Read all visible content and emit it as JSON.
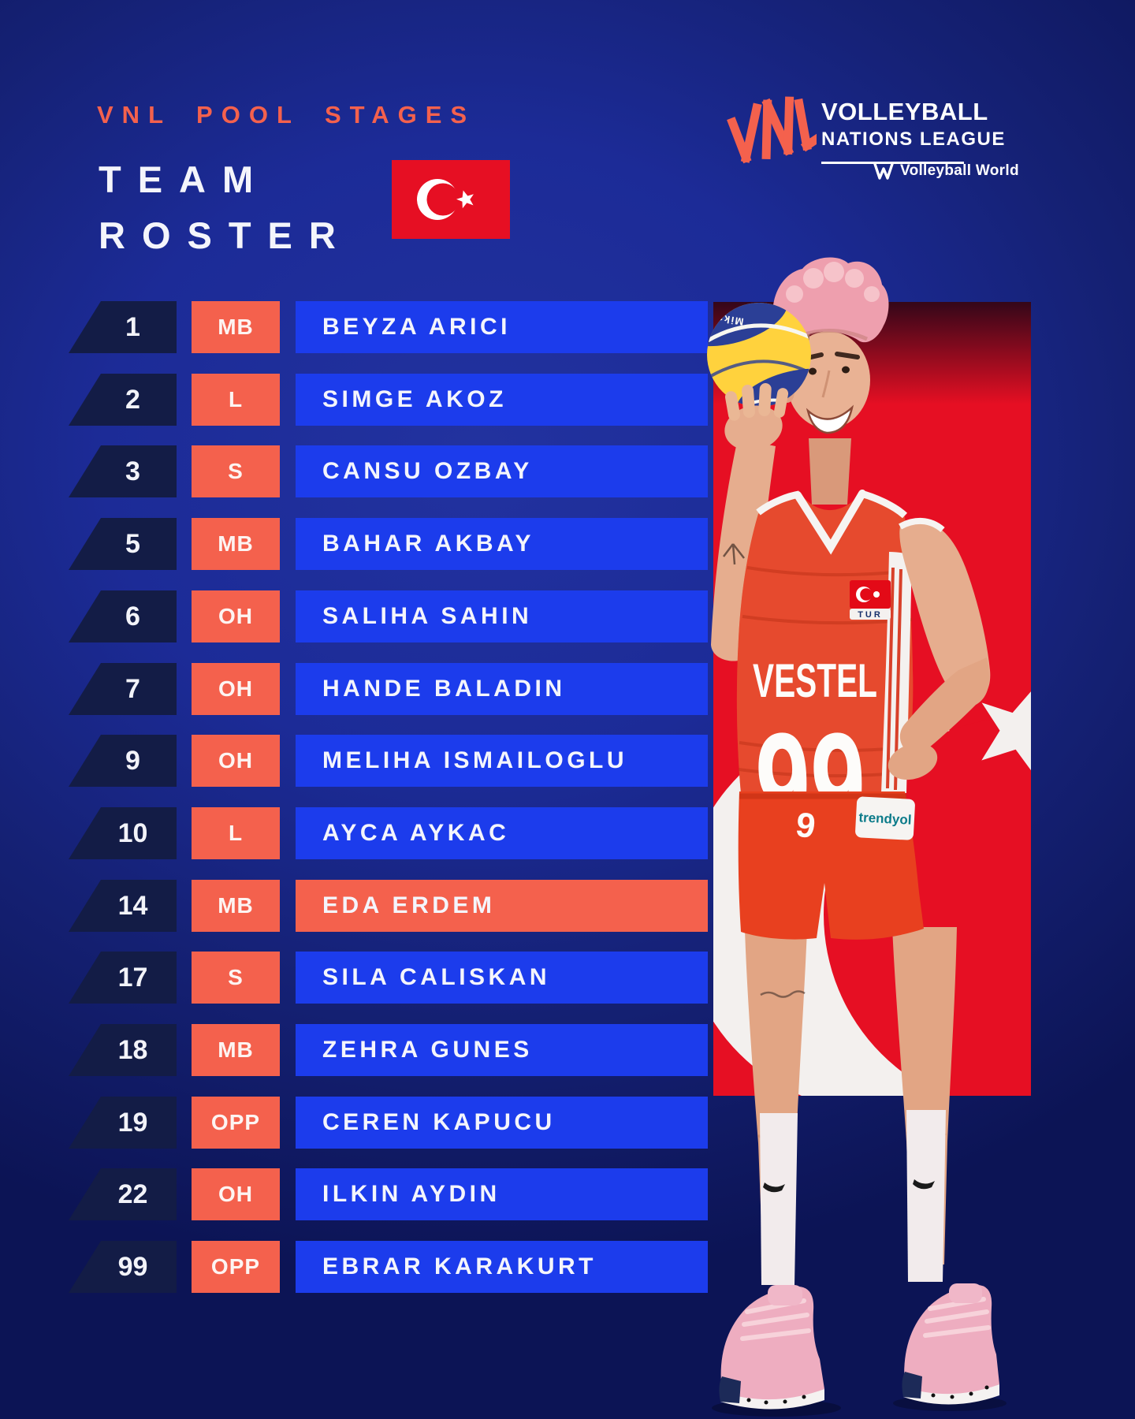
{
  "header": {
    "eyebrow": "VNL POOL STAGES",
    "title_line1": "TEAM",
    "title_line2": "ROSTER",
    "title_flag": "turkey-flag"
  },
  "logo": {
    "mark": "VNL",
    "line1": "VOLLEYBALL",
    "line2": "NATIONS LEAGUE",
    "byline": "Volleyball World"
  },
  "roster": {
    "rows": [
      {
        "number": "1",
        "position": "MB",
        "name": "BEYZA ARICI",
        "highlighted": false
      },
      {
        "number": "2",
        "position": "L",
        "name": "SIMGE AKOZ",
        "highlighted": false
      },
      {
        "number": "3",
        "position": "S",
        "name": "CANSU OZBAY",
        "highlighted": false
      },
      {
        "number": "5",
        "position": "MB",
        "name": "BAHAR AKBAY",
        "highlighted": false
      },
      {
        "number": "6",
        "position": "OH",
        "name": "SALIHA SAHIN",
        "highlighted": false
      },
      {
        "number": "7",
        "position": "OH",
        "name": "HANDE BALADIN",
        "highlighted": false
      },
      {
        "number": "9",
        "position": "OH",
        "name": "MELIHA ISMAILOGLU",
        "highlighted": false
      },
      {
        "number": "10",
        "position": "L",
        "name": "AYCA AYKAC",
        "highlighted": false
      },
      {
        "number": "14",
        "position": "MB",
        "name": "EDA ERDEM",
        "highlighted": true
      },
      {
        "number": "17",
        "position": "S",
        "name": "SILA CALISKAN",
        "highlighted": false
      },
      {
        "number": "18",
        "position": "MB",
        "name": "ZEHRA GUNES",
        "highlighted": false
      },
      {
        "number": "19",
        "position": "OPP",
        "name": "CEREN KAPUCU",
        "highlighted": false
      },
      {
        "number": "22",
        "position": "OH",
        "name": "ILKIN AYDIN",
        "highlighted": false
      },
      {
        "number": "99",
        "position": "OPP",
        "name": "EBRAR KARAKURT",
        "highlighted": false
      }
    ]
  },
  "photo": {
    "ball_brand": "Mikasa",
    "jersey_sponsor": "VESTEL",
    "jersey_number": "99",
    "jersey_patch": "TUR",
    "shorts_number": "9",
    "shorts_sponsor": "trendyol"
  },
  "colors": {
    "coral": "#f4614d",
    "rowblue": "#1c3cec",
    "navy": "#131c46",
    "flagred": "#e60f23",
    "background": "#1c2b97"
  }
}
